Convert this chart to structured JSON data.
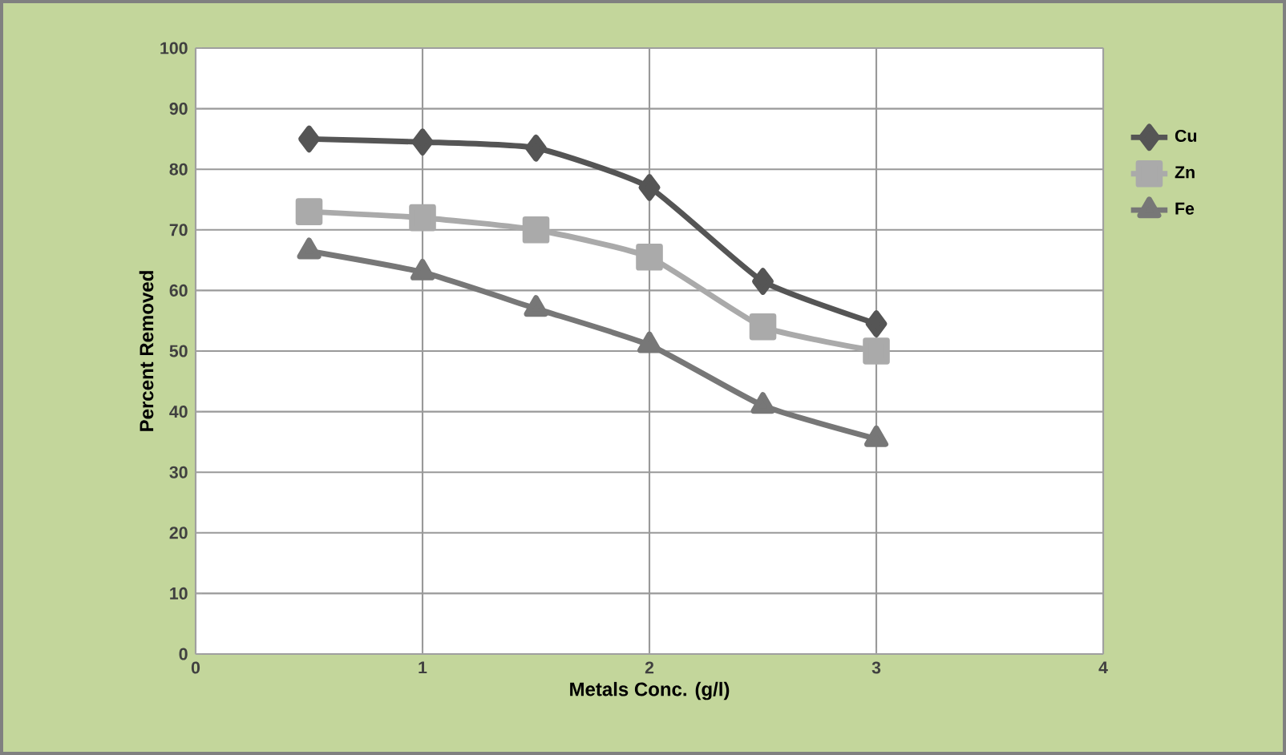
{
  "chart_data": {
    "type": "line",
    "xlabel": "Metals Conc. (g/l)",
    "ylabel": "Percent Removed",
    "x": [
      0.5,
      1,
      1.5,
      2,
      2.5,
      3
    ],
    "series": [
      {
        "name": "Cu",
        "color": "#555555",
        "marker": "diamond",
        "values": [
          85,
          84.5,
          83.5,
          77,
          61.5,
          54.5
        ]
      },
      {
        "name": "Zn",
        "color": "#aaaaaa",
        "marker": "square",
        "values": [
          73,
          72,
          70,
          65.5,
          54,
          50
        ]
      },
      {
        "name": "Fe",
        "color": "#777777",
        "marker": "triangle",
        "values": [
          66.5,
          63,
          57,
          51,
          41,
          35.5
        ]
      }
    ],
    "xlim": [
      0,
      4
    ],
    "xticks": [
      0,
      1,
      2,
      3,
      4
    ],
    "ylim": [
      0,
      100
    ],
    "yticks": [
      0,
      10,
      20,
      30,
      40,
      50,
      60,
      70,
      80,
      90,
      100
    ],
    "grid": true,
    "legend": "right",
    "line_style": "solid"
  }
}
